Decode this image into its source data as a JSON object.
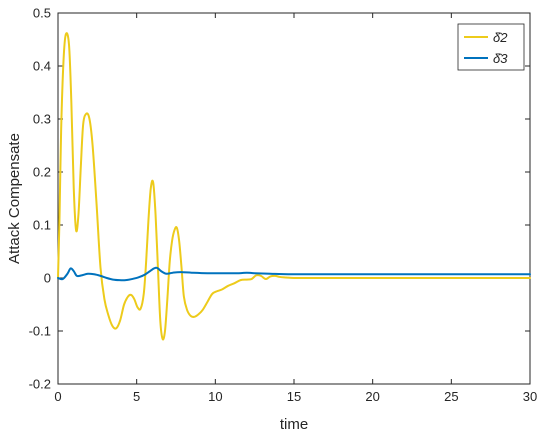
{
  "chart_data": {
    "type": "line",
    "xlabel": "time",
    "ylabel": "Attack Compensate",
    "xlim": [
      0,
      30
    ],
    "ylim": [
      -0.2,
      0.5
    ],
    "xticks": [
      0,
      5,
      10,
      15,
      20,
      25,
      30
    ],
    "xtick_labels": [
      "0",
      "5",
      "10",
      "15",
      "20",
      "25",
      "30"
    ],
    "yticks": [
      -0.2,
      -0.1,
      0,
      0.1,
      0.2,
      0.3,
      0.4,
      0.5
    ],
    "ytick_labels": [
      "-0.2",
      "-0.1",
      "0",
      "0.1",
      "0.2",
      "0.3",
      "0.4",
      "0.5"
    ],
    "grid": false,
    "legend_position": "top-right",
    "series": [
      {
        "name": "δ̂2",
        "color": "#EDCB1B",
        "x": [
          0,
          0.1,
          0.2,
          0.35,
          0.5,
          0.7,
          0.85,
          1.0,
          1.15,
          1.3,
          1.45,
          1.6,
          1.8,
          2.0,
          2.2,
          2.45,
          2.7,
          2.95,
          3.2,
          3.45,
          3.7,
          3.95,
          4.2,
          4.45,
          4.65,
          4.85,
          5.05,
          5.25,
          5.45,
          5.6,
          5.75,
          5.9,
          6.05,
          6.2,
          6.35,
          6.5,
          6.65,
          6.8,
          6.95,
          7.1,
          7.25,
          7.4,
          7.55,
          7.7,
          7.85,
          8.0,
          8.2,
          8.45,
          8.7,
          8.95,
          9.2,
          9.5,
          9.8,
          10.1,
          10.4,
          10.8,
          11.2,
          11.6,
          12.0,
          12.3,
          12.6,
          12.9,
          13.2,
          13.5,
          13.8,
          14.1,
          14.5,
          15.0,
          16.0,
          18.0,
          20.0,
          25.0,
          30.0
        ],
        "y": [
          0.0,
          0.12,
          0.28,
          0.41,
          0.46,
          0.44,
          0.33,
          0.17,
          0.09,
          0.12,
          0.21,
          0.29,
          0.31,
          0.3,
          0.25,
          0.14,
          0.02,
          -0.04,
          -0.07,
          -0.09,
          -0.095,
          -0.08,
          -0.05,
          -0.035,
          -0.032,
          -0.04,
          -0.055,
          -0.058,
          -0.03,
          0.03,
          0.11,
          0.17,
          0.18,
          0.12,
          0.02,
          -0.08,
          -0.115,
          -0.1,
          -0.04,
          0.03,
          0.07,
          0.09,
          0.095,
          0.07,
          0.02,
          -0.035,
          -0.06,
          -0.072,
          -0.073,
          -0.068,
          -0.06,
          -0.045,
          -0.03,
          -0.025,
          -0.022,
          -0.015,
          -0.01,
          -0.004,
          -0.003,
          -0.002,
          0.005,
          0.004,
          -0.002,
          0.003,
          0.004,
          0.002,
          0.001,
          0.0,
          0.0,
          0.0,
          0.0,
          0.0,
          0.0
        ]
      },
      {
        "name": "δ̂3",
        "color": "#0072BD",
        "x": [
          0,
          0.3,
          0.6,
          0.8,
          1.0,
          1.2,
          1.5,
          1.9,
          2.3,
          2.7,
          3.1,
          3.5,
          3.9,
          4.3,
          4.7,
          5.1,
          5.5,
          5.8,
          6.1,
          6.3,
          6.6,
          6.9,
          7.3,
          7.8,
          8.5,
          9.5,
          10.5,
          11.5,
          12.0,
          12.5,
          13.5,
          15.0,
          20.0,
          25.0,
          30.0
        ],
        "y": [
          0.0,
          -0.002,
          0.008,
          0.018,
          0.013,
          0.004,
          0.005,
          0.008,
          0.007,
          0.004,
          0.0,
          -0.003,
          -0.004,
          -0.004,
          -0.002,
          0.001,
          0.006,
          0.012,
          0.018,
          0.019,
          0.012,
          0.008,
          0.01,
          0.011,
          0.01,
          0.009,
          0.009,
          0.009,
          0.01,
          0.009,
          0.008,
          0.007,
          0.007,
          0.007,
          0.007
        ]
      }
    ]
  }
}
